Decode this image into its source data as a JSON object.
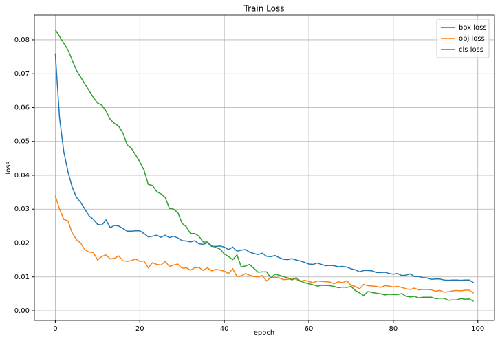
{
  "chart_data": {
    "type": "line",
    "title": "Train Loss",
    "x_label": "epoch",
    "y_label": "loss",
    "x": [
      0,
      1,
      2,
      3,
      4,
      5,
      6,
      7,
      8,
      9,
      10,
      11,
      12,
      13,
      14,
      15,
      16,
      17,
      18,
      19,
      20,
      21,
      22,
      23,
      24,
      25,
      26,
      27,
      28,
      29,
      30,
      31,
      32,
      33,
      34,
      35,
      36,
      37,
      38,
      39,
      40,
      41,
      42,
      43,
      44,
      45,
      46,
      47,
      48,
      49,
      50,
      51,
      52,
      53,
      54,
      55,
      56,
      57,
      58,
      59,
      60,
      61,
      62,
      63,
      64,
      65,
      66,
      67,
      68,
      69,
      70,
      71,
      72,
      73,
      74,
      75,
      76,
      77,
      78,
      79,
      80,
      81,
      82,
      83,
      84,
      85,
      86,
      87,
      88,
      89,
      90,
      91,
      92,
      93,
      94,
      95,
      96,
      97,
      98,
      99
    ],
    "series": [
      {
        "name": "box loss",
        "color": "#1f77b4",
        "values": [
          0.076,
          0.057,
          0.047,
          0.041,
          0.0365,
          0.0335,
          0.032,
          0.03,
          0.028,
          0.027,
          0.0255,
          0.0253,
          0.0268,
          0.0245,
          0.0252,
          0.025,
          0.0243,
          0.0235,
          0.0235,
          0.0236,
          0.0236,
          0.0228,
          0.0218,
          0.022,
          0.0223,
          0.0217,
          0.0223,
          0.0216,
          0.022,
          0.0215,
          0.0207,
          0.0206,
          0.0203,
          0.0207,
          0.0198,
          0.0196,
          0.0201,
          0.019,
          0.019,
          0.0191,
          0.0188,
          0.0181,
          0.0188,
          0.0176,
          0.0179,
          0.0181,
          0.0173,
          0.0169,
          0.0166,
          0.017,
          0.0161,
          0.016,
          0.0163,
          0.0157,
          0.0152,
          0.0151,
          0.0154,
          0.015,
          0.0147,
          0.0143,
          0.0138,
          0.0137,
          0.0141,
          0.0137,
          0.0133,
          0.0134,
          0.0133,
          0.013,
          0.0131,
          0.0129,
          0.0124,
          0.0121,
          0.0115,
          0.0119,
          0.0119,
          0.0118,
          0.0113,
          0.0113,
          0.0114,
          0.011,
          0.0108,
          0.011,
          0.0104,
          0.0105,
          0.0109,
          0.0101,
          0.0101,
          0.0098,
          0.0097,
          0.0093,
          0.0094,
          0.0094,
          0.0091,
          0.009,
          0.0091,
          0.0091,
          0.009,
          0.0091,
          0.0091,
          0.0083
        ]
      },
      {
        "name": "obj loss",
        "color": "#ff7f0e",
        "values": [
          0.034,
          0.03,
          0.027,
          0.0265,
          0.023,
          0.021,
          0.02,
          0.018,
          0.0173,
          0.0172,
          0.015,
          0.016,
          0.0165,
          0.0153,
          0.0155,
          0.0162,
          0.0148,
          0.0146,
          0.0148,
          0.0153,
          0.0146,
          0.0147,
          0.0127,
          0.0142,
          0.0137,
          0.0135,
          0.0146,
          0.0131,
          0.0135,
          0.0138,
          0.0126,
          0.0127,
          0.012,
          0.0127,
          0.0128,
          0.0119,
          0.0127,
          0.0118,
          0.0122,
          0.012,
          0.0117,
          0.011,
          0.0124,
          0.0101,
          0.0103,
          0.011,
          0.0105,
          0.0101,
          0.01,
          0.0104,
          0.0088,
          0.0098,
          0.0099,
          0.0097,
          0.0092,
          0.0093,
          0.0096,
          0.0093,
          0.0087,
          0.009,
          0.0087,
          0.0083,
          0.0088,
          0.0087,
          0.0086,
          0.0085,
          0.008,
          0.0086,
          0.0083,
          0.0089,
          0.0075,
          0.0072,
          0.0065,
          0.0078,
          0.0074,
          0.0073,
          0.0072,
          0.0069,
          0.0074,
          0.0073,
          0.007,
          0.0072,
          0.0069,
          0.0065,
          0.0063,
          0.0067,
          0.0062,
          0.0063,
          0.0063,
          0.0062,
          0.0058,
          0.006,
          0.0055,
          0.0056,
          0.0059,
          0.006,
          0.0059,
          0.0061,
          0.0061,
          0.0052
        ]
      },
      {
        "name": "cls loss",
        "color": "#2ca02c",
        "values": [
          0.083,
          0.081,
          0.079,
          0.077,
          0.074,
          0.071,
          0.069,
          0.067,
          0.065,
          0.063,
          0.0613,
          0.0607,
          0.059,
          0.0565,
          0.0553,
          0.0545,
          0.0525,
          0.049,
          0.048,
          0.046,
          0.044,
          0.0415,
          0.0373,
          0.037,
          0.0352,
          0.0345,
          0.0335,
          0.0302,
          0.03,
          0.029,
          0.0258,
          0.0248,
          0.0228,
          0.0228,
          0.022,
          0.0203,
          0.0203,
          0.0192,
          0.0187,
          0.0182,
          0.0168,
          0.016,
          0.0151,
          0.0165,
          0.013,
          0.0132,
          0.0137,
          0.0125,
          0.0114,
          0.0115,
          0.0115,
          0.0097,
          0.0108,
          0.0105,
          0.0101,
          0.0097,
          0.0091,
          0.0098,
          0.0088,
          0.0083,
          0.008,
          0.0077,
          0.0073,
          0.0075,
          0.0075,
          0.0074,
          0.0072,
          0.0068,
          0.007,
          0.0069,
          0.0072,
          0.006,
          0.0053,
          0.0045,
          0.0057,
          0.0054,
          0.0052,
          0.005,
          0.0047,
          0.0049,
          0.0048,
          0.0048,
          0.0051,
          0.0043,
          0.0041,
          0.0043,
          0.0038,
          0.004,
          0.004,
          0.004,
          0.0036,
          0.0037,
          0.0037,
          0.0031,
          0.0032,
          0.0032,
          0.0036,
          0.0034,
          0.0035,
          0.0028
        ]
      }
    ],
    "xlim": [
      -4.95,
      103.95
    ],
    "ylim": [
      -0.00284,
      0.0873
    ],
    "xticks": [
      0,
      20,
      40,
      60,
      80,
      100
    ],
    "yticks": [
      {
        "value": 0,
        "label": "0.00"
      },
      {
        "value": 0.01,
        "label": "0.01"
      },
      {
        "value": 0.02,
        "label": "0.02"
      },
      {
        "value": 0.03,
        "label": "0.03"
      },
      {
        "value": 0.04,
        "label": "0.04"
      },
      {
        "value": 0.05,
        "label": "0.05"
      },
      {
        "value": 0.06,
        "label": "0.06"
      },
      {
        "value": 0.07,
        "label": "0.07"
      },
      {
        "value": 0.08,
        "label": "0.08"
      }
    ],
    "grid": true,
    "legend": "upper-right"
  }
}
